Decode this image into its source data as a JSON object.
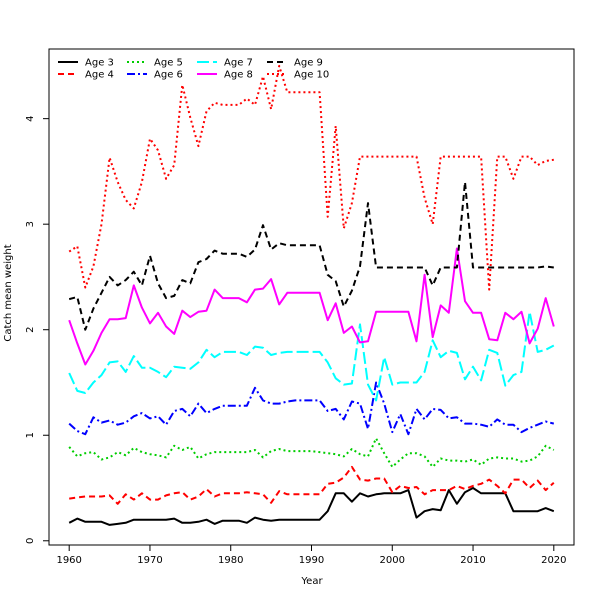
{
  "chart_data": {
    "type": "line",
    "xlabel": "Year",
    "ylabel": "Catch mean weight",
    "xlim": [
      1957.5,
      2022.5
    ],
    "ylim": [
      -0.04,
      4.66
    ],
    "x_ticks": [
      1960,
      1970,
      1980,
      1990,
      2000,
      2010,
      2020
    ],
    "y_ticks": [
      0,
      1,
      2,
      3,
      4
    ],
    "grid": false,
    "legend_position": "top-left",
    "x": [
      1960,
      1961,
      1962,
      1963,
      1964,
      1965,
      1966,
      1967,
      1968,
      1969,
      1970,
      1971,
      1972,
      1973,
      1974,
      1975,
      1976,
      1977,
      1978,
      1979,
      1980,
      1981,
      1982,
      1983,
      1984,
      1985,
      1986,
      1987,
      1988,
      1989,
      1990,
      1991,
      1992,
      1993,
      1994,
      1995,
      1996,
      1997,
      1998,
      1999,
      2000,
      2001,
      2002,
      2003,
      2004,
      2005,
      2006,
      2007,
      2008,
      2009,
      2010,
      2011,
      2012,
      2013,
      2014,
      2015,
      2016,
      2017,
      2018,
      2019,
      2020
    ],
    "series": [
      {
        "name": "Age 3",
        "color": "#000000",
        "dash": "solid",
        "values": [
          0.17,
          0.21,
          0.18,
          0.18,
          0.18,
          0.15,
          0.16,
          0.17,
          0.2,
          0.2,
          0.2,
          0.2,
          0.2,
          0.21,
          0.17,
          0.17,
          0.18,
          0.2,
          0.16,
          0.19,
          0.19,
          0.19,
          0.17,
          0.22,
          0.2,
          0.19,
          0.2,
          0.2,
          0.2,
          0.2,
          0.2,
          0.2,
          0.28,
          0.45,
          0.45,
          0.37,
          0.45,
          0.42,
          0.44,
          0.45,
          0.45,
          0.45,
          0.48,
          0.22,
          0.28,
          0.3,
          0.29,
          0.48,
          0.35,
          0.46,
          0.5,
          0.45,
          0.45,
          0.45,
          0.45,
          0.28,
          0.28,
          0.28,
          0.28,
          0.31,
          0.28
        ]
      },
      {
        "name": "Age 4",
        "color": "#ff0000",
        "dash": "6,4",
        "values": [
          0.4,
          0.41,
          0.42,
          0.42,
          0.42,
          0.43,
          0.35,
          0.44,
          0.39,
          0.45,
          0.39,
          0.39,
          0.43,
          0.45,
          0.46,
          0.39,
          0.42,
          0.49,
          0.42,
          0.45,
          0.45,
          0.45,
          0.46,
          0.45,
          0.44,
          0.36,
          0.47,
          0.44,
          0.44,
          0.44,
          0.44,
          0.44,
          0.54,
          0.55,
          0.6,
          0.7,
          0.58,
          0.57,
          0.59,
          0.59,
          0.46,
          0.52,
          0.5,
          0.51,
          0.44,
          0.48,
          0.48,
          0.48,
          0.52,
          0.49,
          0.52,
          0.54,
          0.58,
          0.52,
          0.45,
          0.58,
          0.58,
          0.5,
          0.57,
          0.48,
          0.55
        ]
      },
      {
        "name": "Age 5",
        "color": "#00cd00",
        "dash": "2,3",
        "values": [
          0.89,
          0.8,
          0.83,
          0.84,
          0.77,
          0.79,
          0.84,
          0.81,
          0.88,
          0.84,
          0.82,
          0.81,
          0.79,
          0.9,
          0.86,
          0.89,
          0.78,
          0.82,
          0.84,
          0.84,
          0.84,
          0.84,
          0.84,
          0.86,
          0.79,
          0.85,
          0.87,
          0.85,
          0.85,
          0.85,
          0.85,
          0.84,
          0.83,
          0.82,
          0.8,
          0.87,
          0.82,
          0.8,
          0.97,
          0.83,
          0.7,
          0.77,
          0.83,
          0.83,
          0.8,
          0.7,
          0.78,
          0.76,
          0.76,
          0.75,
          0.77,
          0.72,
          0.78,
          0.79,
          0.78,
          0.78,
          0.75,
          0.76,
          0.8,
          0.9,
          0.86
        ]
      },
      {
        "name": "Age 6",
        "color": "#0000ff",
        "dash": "8,3,2,3",
        "values": [
          1.11,
          1.04,
          1.01,
          1.17,
          1.12,
          1.14,
          1.1,
          1.12,
          1.18,
          1.21,
          1.16,
          1.18,
          1.1,
          1.23,
          1.25,
          1.18,
          1.3,
          1.21,
          1.25,
          1.28,
          1.28,
          1.28,
          1.28,
          1.45,
          1.33,
          1.3,
          1.3,
          1.32,
          1.33,
          1.33,
          1.33,
          1.33,
          1.23,
          1.25,
          1.15,
          1.32,
          1.3,
          1.06,
          1.5,
          1.3,
          1.03,
          1.2,
          1.01,
          1.25,
          1.15,
          1.25,
          1.24,
          1.16,
          1.17,
          1.11,
          1.11,
          1.1,
          1.08,
          1.15,
          1.1,
          1.1,
          1.03,
          1.07,
          1.1,
          1.13,
          1.11
        ]
      },
      {
        "name": "Age 7",
        "color": "#00ffff",
        "dash": "12,4",
        "values": [
          1.59,
          1.42,
          1.4,
          1.5,
          1.57,
          1.69,
          1.7,
          1.6,
          1.75,
          1.64,
          1.64,
          1.6,
          1.55,
          1.65,
          1.64,
          1.63,
          1.69,
          1.81,
          1.74,
          1.79,
          1.79,
          1.79,
          1.76,
          1.84,
          1.83,
          1.76,
          1.78,
          1.79,
          1.79,
          1.79,
          1.79,
          1.79,
          1.69,
          1.54,
          1.48,
          1.49,
          2.05,
          1.48,
          1.33,
          1.74,
          1.48,
          1.5,
          1.5,
          1.5,
          1.6,
          1.9,
          1.74,
          1.8,
          1.78,
          1.53,
          1.65,
          1.52,
          1.81,
          1.78,
          1.47,
          1.57,
          1.6,
          2.17,
          1.79,
          1.81,
          1.85
        ]
      },
      {
        "name": "Age 8",
        "color": "#ff00ff",
        "dash": "solid",
        "values": [
          2.09,
          1.87,
          1.67,
          1.8,
          1.97,
          2.1,
          2.1,
          2.11,
          2.42,
          2.21,
          2.06,
          2.16,
          2.03,
          1.96,
          2.18,
          2.12,
          2.17,
          2.18,
          2.38,
          2.3,
          2.3,
          2.3,
          2.26,
          2.38,
          2.39,
          2.48,
          2.24,
          2.35,
          2.35,
          2.35,
          2.35,
          2.35,
          2.09,
          2.25,
          1.97,
          2.03,
          1.88,
          1.89,
          2.17,
          2.17,
          2.17,
          2.17,
          2.17,
          1.89,
          2.52,
          1.93,
          2.23,
          2.16,
          2.77,
          2.27,
          2.16,
          2.16,
          1.91,
          1.9,
          2.16,
          2.1,
          2.17,
          1.87,
          2.01,
          2.3,
          2.03
        ]
      },
      {
        "name": "Age 9",
        "color": "#000000",
        "dash": "6,4",
        "values": [
          2.29,
          2.31,
          2.0,
          2.2,
          2.35,
          2.5,
          2.42,
          2.47,
          2.55,
          2.42,
          2.7,
          2.44,
          2.3,
          2.32,
          2.47,
          2.44,
          2.64,
          2.67,
          2.75,
          2.72,
          2.72,
          2.72,
          2.69,
          2.76,
          2.99,
          2.76,
          2.82,
          2.8,
          2.8,
          2.8,
          2.8,
          2.8,
          2.52,
          2.46,
          2.22,
          2.37,
          2.6,
          3.2,
          2.59,
          2.59,
          2.59,
          2.59,
          2.59,
          2.59,
          2.59,
          2.42,
          2.59,
          2.59,
          2.59,
          3.4,
          2.59,
          2.59,
          2.59,
          2.59,
          2.59,
          2.59,
          2.59,
          2.59,
          2.59,
          2.6,
          2.59
        ]
      },
      {
        "name": "Age 10",
        "color": "#ff0000",
        "dash": "2,3",
        "values": [
          2.74,
          2.79,
          2.4,
          2.6,
          3.0,
          3.63,
          3.4,
          3.23,
          3.15,
          3.4,
          3.81,
          3.7,
          3.43,
          3.56,
          4.32,
          4.01,
          3.74,
          4.07,
          4.15,
          4.13,
          4.13,
          4.13,
          4.19,
          4.13,
          4.4,
          4.09,
          4.5,
          4.25,
          4.25,
          4.25,
          4.25,
          4.25,
          3.07,
          3.93,
          2.96,
          3.2,
          3.64,
          3.64,
          3.64,
          3.64,
          3.64,
          3.64,
          3.64,
          3.64,
          3.25,
          3.0,
          3.64,
          3.64,
          3.64,
          3.64,
          3.64,
          3.64,
          2.38,
          3.64,
          3.64,
          3.43,
          3.64,
          3.64,
          3.56,
          3.6,
          3.61
        ]
      }
    ]
  }
}
